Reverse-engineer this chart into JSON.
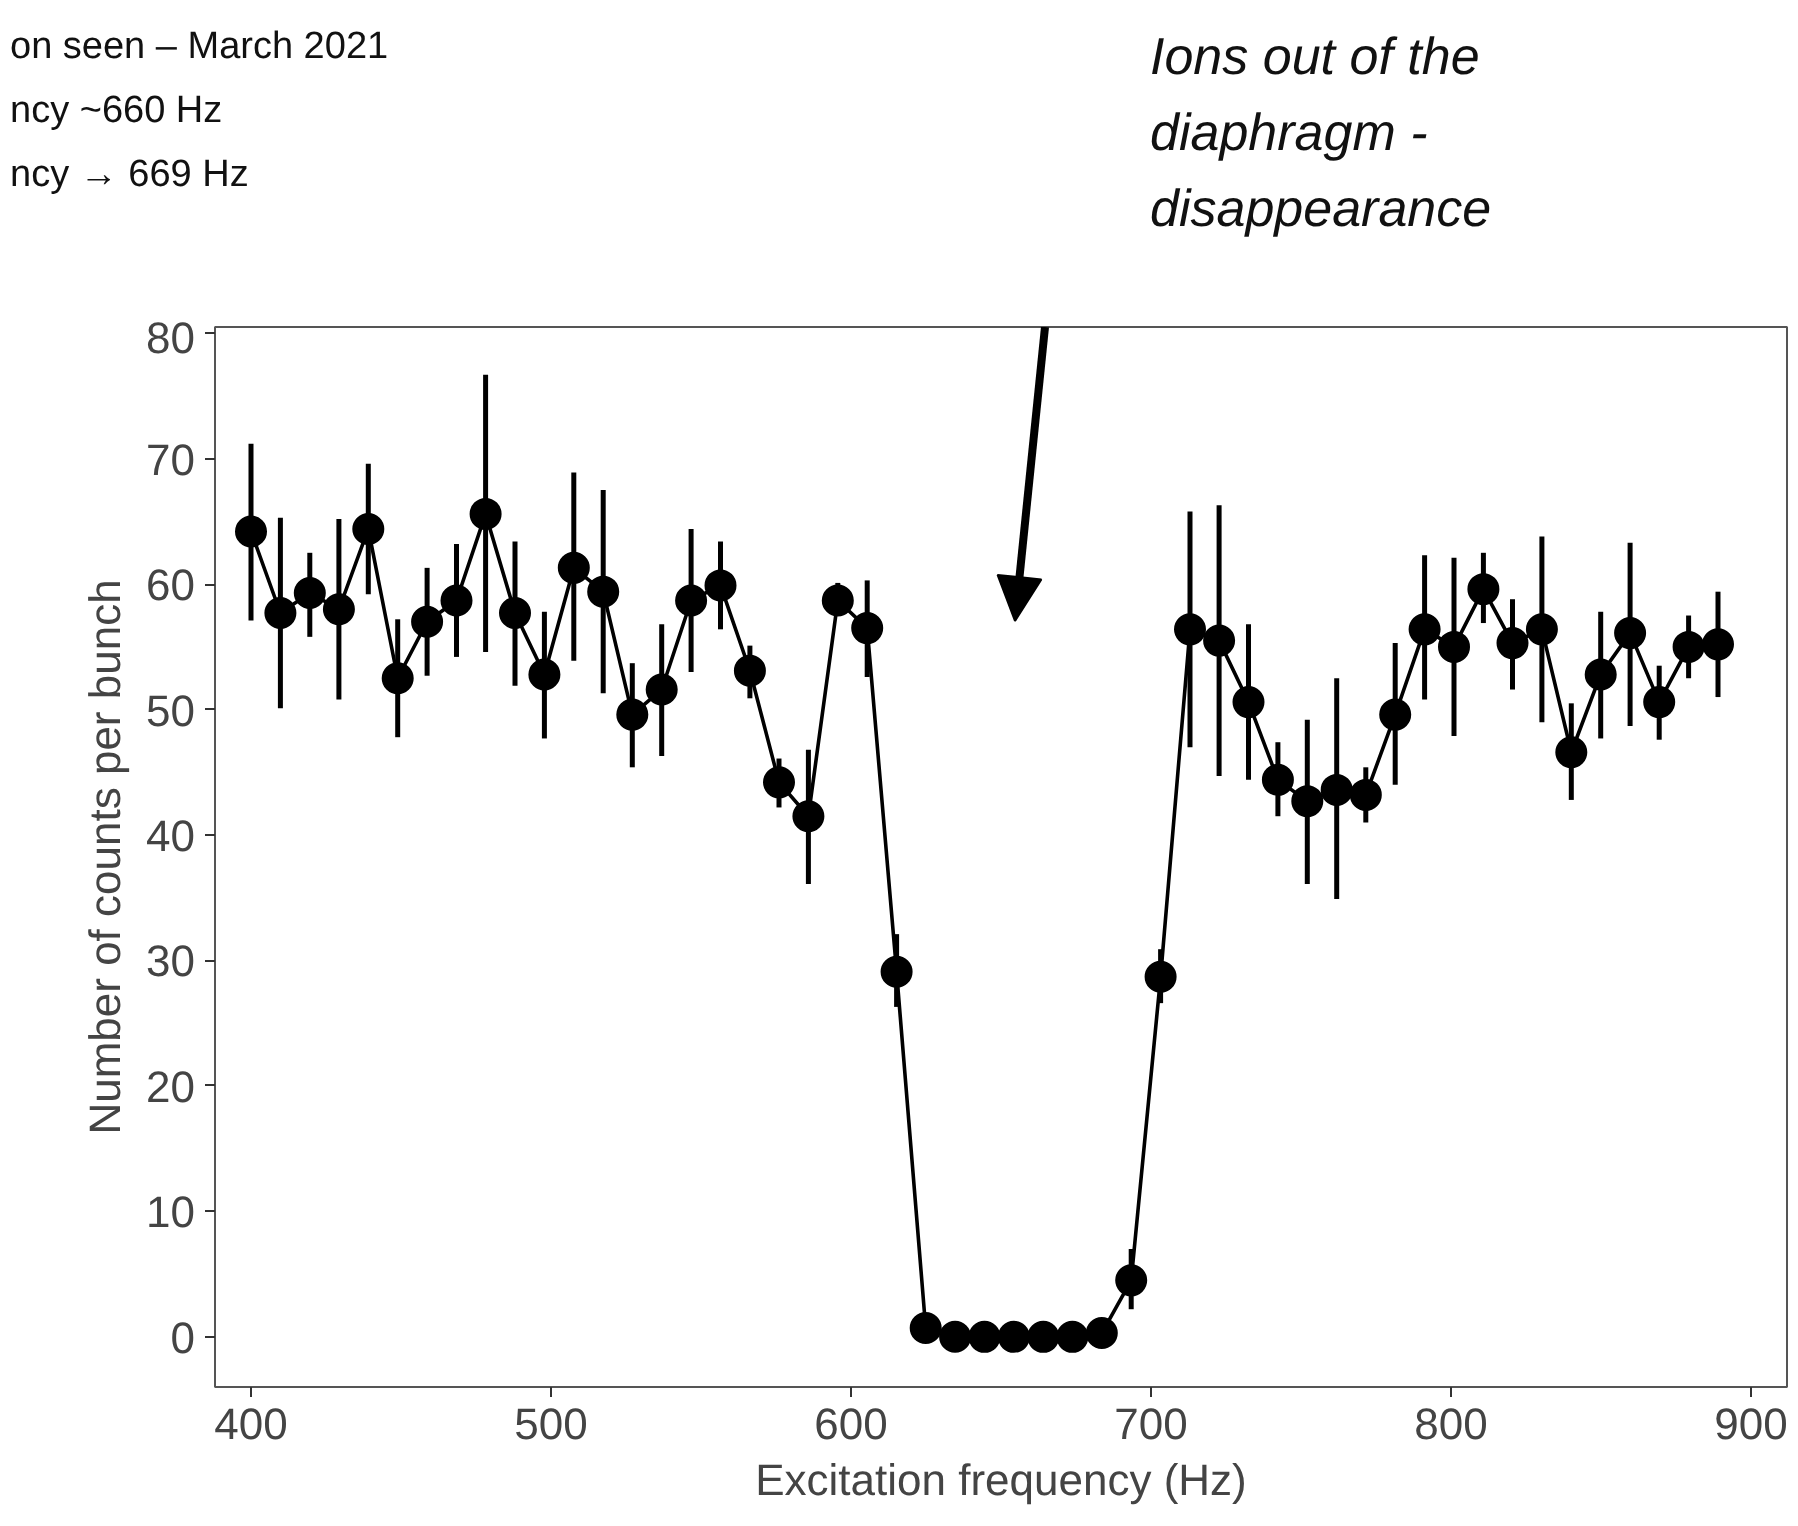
{
  "chart_data": {
    "type": "line",
    "xlabel": "Excitation frequency (Hz)",
    "ylabel": "Number of counts per bunch",
    "x": [
      400.0,
      409.8,
      419.6,
      429.3,
      439.1,
      448.9,
      458.7,
      468.5,
      478.2,
      488.0,
      497.8,
      507.6,
      517.4,
      527.1,
      536.9,
      546.7,
      556.5,
      566.3,
      576.0,
      585.8,
      595.6,
      605.4,
      615.2,
      624.9,
      634.7,
      644.5,
      654.3,
      664.1,
      673.8,
      683.6,
      693.4,
      703.2,
      713.0,
      722.7,
      732.5,
      742.3,
      752.1,
      761.9,
      771.6,
      781.4,
      791.2,
      801.0,
      810.8,
      820.5,
      830.3,
      840.1,
      849.9,
      859.7,
      869.4,
      879.2,
      889.0
    ],
    "series": [
      {
        "color": "#000000",
        "values": [
          64.2,
          57.7,
          59.3,
          58.0,
          64.4,
          52.5,
          57.0,
          58.7,
          65.6,
          57.7,
          52.8,
          61.3,
          59.4,
          49.6,
          51.6,
          58.7,
          59.9,
          53.1,
          44.2,
          41.5,
          58.7,
          56.5,
          29.1,
          0.7,
          0,
          0,
          0,
          0,
          0,
          0.3,
          4.5,
          28.7,
          56.4,
          55.5,
          50.6,
          44.4,
          42.7,
          43.6,
          43.2,
          49.6,
          56.4,
          55.0,
          59.6,
          55.3,
          56.4,
          46.6,
          52.8,
          56.1,
          50.6,
          55.0,
          55.2
        ],
        "errors": [
          [
            57.1,
            71.2
          ],
          [
            50.1,
            65.3
          ],
          [
            55.8,
            62.5
          ],
          [
            50.8,
            65.2
          ],
          [
            59.2,
            69.6
          ],
          [
            47.8,
            57.2
          ],
          [
            52.7,
            61.3
          ],
          [
            54.2,
            63.2
          ],
          [
            54.6,
            76.7
          ],
          [
            51.9,
            63.4
          ],
          [
            47.7,
            57.8
          ],
          [
            53.9,
            68.9
          ],
          [
            51.3,
            67.5
          ],
          [
            45.4,
            53.7
          ],
          [
            46.3,
            56.8
          ],
          [
            53.0,
            64.4
          ],
          [
            56.4,
            63.4
          ],
          [
            50.9,
            55.1
          ],
          [
            42.2,
            46.1
          ],
          [
            36.1,
            46.8
          ],
          [
            57.5,
            60.1
          ],
          [
            52.6,
            60.3
          ],
          [
            26.3,
            32.1
          ],
          null,
          null,
          null,
          null,
          null,
          null,
          null,
          [
            2.2,
            7.0
          ],
          [
            26.6,
            30.9
          ],
          [
            47.0,
            65.8
          ],
          [
            44.7,
            66.3
          ],
          [
            44.4,
            56.8
          ],
          [
            41.5,
            47.4
          ],
          [
            36.1,
            49.2
          ],
          [
            34.9,
            52.5
          ],
          [
            41.0,
            45.4
          ],
          [
            44.0,
            55.3
          ],
          [
            50.8,
            62.3
          ],
          [
            47.9,
            62.1
          ],
          [
            56.9,
            62.5
          ],
          [
            51.6,
            58.8
          ],
          [
            49.0,
            63.8
          ],
          [
            42.8,
            50.5
          ],
          [
            47.7,
            57.8
          ],
          [
            48.7,
            63.3
          ],
          [
            47.6,
            53.5
          ],
          [
            52.5,
            57.5
          ],
          [
            51.0,
            59.4
          ]
        ]
      }
    ],
    "xlim": [
      388,
      912
    ],
    "ylim": [
      -4,
      80.5
    ],
    "xticks": [
      400,
      500,
      600,
      700,
      800,
      900
    ],
    "yticks": [
      0,
      10,
      20,
      30,
      40,
      50,
      60,
      70,
      80
    ],
    "grid": false,
    "marker": "circle",
    "line_style": "solid",
    "annotations": [
      "on seen – March 2021",
      "ncy ~660 Hz",
      "ncy → 669 Hz",
      "Ions out of the diaphragm - disappearance"
    ]
  }
}
